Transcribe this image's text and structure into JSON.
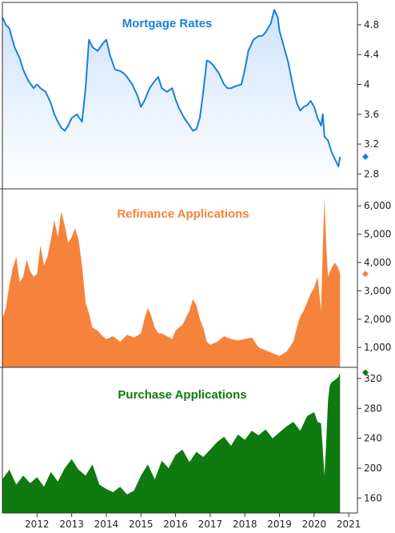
{
  "chart_data": [
    {
      "type": "line",
      "title": "Mortgage Rates",
      "color": "#1a7fd9",
      "area_gradient_top": "#cfe3fb",
      "ylim": [
        2.6,
        5.1
      ],
      "yticks": [
        2.8,
        3.2,
        3.6,
        4,
        4.4,
        4.8
      ],
      "ytick_labels": [
        "2.8",
        "3.2",
        "3.6",
        "4",
        "4.4",
        "4.8"
      ],
      "last_value": 3.03,
      "x": [
        2011.0,
        2011.1,
        2011.2,
        2011.35,
        2011.5,
        2011.6,
        2011.75,
        2011.9,
        2012.0,
        2012.1,
        2012.25,
        2012.4,
        2012.5,
        2012.6,
        2012.7,
        2012.8,
        2012.9,
        2013.0,
        2013.15,
        2013.3,
        2013.4,
        2013.5,
        2013.6,
        2013.75,
        2013.9,
        2014.0,
        2014.1,
        2014.25,
        2014.4,
        2014.5,
        2014.6,
        2014.75,
        2014.9,
        2015.0,
        2015.1,
        2015.25,
        2015.4,
        2015.5,
        2015.6,
        2015.75,
        2015.9,
        2016.0,
        2016.1,
        2016.25,
        2016.4,
        2016.5,
        2016.6,
        2016.7,
        2016.8,
        2016.9,
        2017.0,
        2017.1,
        2017.25,
        2017.4,
        2017.5,
        2017.6,
        2017.75,
        2017.9,
        2018.0,
        2018.1,
        2018.25,
        2018.4,
        2018.5,
        2018.6,
        2018.75,
        2018.85,
        2018.95,
        2019.0,
        2019.1,
        2019.25,
        2019.4,
        2019.5,
        2019.6,
        2019.7,
        2019.8,
        2019.9,
        2020.0,
        2020.1,
        2020.2,
        2020.25,
        2020.3,
        2020.4,
        2020.5,
        2020.6,
        2020.7,
        2020.75
      ],
      "values": [
        4.9,
        4.8,
        4.75,
        4.5,
        4.35,
        4.2,
        4.05,
        3.95,
        4.0,
        3.95,
        3.9,
        3.75,
        3.6,
        3.5,
        3.42,
        3.38,
        3.45,
        3.55,
        3.6,
        3.5,
        3.95,
        4.6,
        4.5,
        4.45,
        4.55,
        4.6,
        4.4,
        4.2,
        4.18,
        4.15,
        4.1,
        4.0,
        3.85,
        3.7,
        3.78,
        3.95,
        4.05,
        4.1,
        3.95,
        3.9,
        3.95,
        3.8,
        3.68,
        3.55,
        3.45,
        3.38,
        3.4,
        3.55,
        3.9,
        4.32,
        4.3,
        4.25,
        4.15,
        4.0,
        3.95,
        3.95,
        3.98,
        4.0,
        4.2,
        4.45,
        4.6,
        4.65,
        4.65,
        4.7,
        4.82,
        5.0,
        4.9,
        4.72,
        4.55,
        4.3,
        3.95,
        3.75,
        3.65,
        3.7,
        3.72,
        3.78,
        3.7,
        3.55,
        3.45,
        3.6,
        3.3,
        3.25,
        3.1,
        3.0,
        2.9,
        3.03
      ]
    },
    {
      "type": "area",
      "title": "Refinance Applications",
      "color": "#f5833c",
      "ylim": [
        300,
        6600
      ],
      "yticks": [
        1000,
        2000,
        3000,
        4000,
        5000,
        6000
      ],
      "ytick_labels": [
        "1,000",
        "2,000",
        "3,000",
        "4,000",
        "5,000",
        "6,000"
      ],
      "last_value": 3600,
      "x": [
        2011.0,
        2011.1,
        2011.2,
        2011.3,
        2011.4,
        2011.5,
        2011.6,
        2011.7,
        2011.8,
        2011.9,
        2012.0,
        2012.1,
        2012.2,
        2012.3,
        2012.4,
        2012.5,
        2012.6,
        2012.7,
        2012.8,
        2012.9,
        2013.0,
        2013.1,
        2013.2,
        2013.3,
        2013.4,
        2013.5,
        2013.6,
        2013.75,
        2013.9,
        2014.0,
        2014.2,
        2014.4,
        2014.6,
        2014.8,
        2015.0,
        2015.1,
        2015.2,
        2015.3,
        2015.4,
        2015.5,
        2015.6,
        2015.75,
        2015.9,
        2016.0,
        2016.2,
        2016.4,
        2016.5,
        2016.6,
        2016.7,
        2016.8,
        2016.9,
        2017.0,
        2017.2,
        2017.4,
        2017.6,
        2017.8,
        2018.0,
        2018.2,
        2018.4,
        2018.6,
        2018.8,
        2019.0,
        2019.2,
        2019.4,
        2019.5,
        2019.6,
        2019.7,
        2019.8,
        2019.9,
        2020.0,
        2020.1,
        2020.2,
        2020.25,
        2020.3,
        2020.35,
        2020.4,
        2020.5,
        2020.6,
        2020.7,
        2020.75
      ],
      "values": [
        2000,
        2400,
        3200,
        3800,
        4200,
        3300,
        3500,
        4100,
        3700,
        3500,
        3600,
        4600,
        3900,
        4200,
        4800,
        5500,
        4900,
        5800,
        5300,
        4700,
        4900,
        5200,
        4800,
        3900,
        2600,
        2200,
        1700,
        1600,
        1400,
        1300,
        1400,
        1200,
        1450,
        1350,
        1500,
        2000,
        2400,
        2100,
        1700,
        1500,
        1500,
        1400,
        1300,
        1600,
        1800,
        2300,
        2700,
        2500,
        2000,
        1700,
        1200,
        1100,
        1200,
        1400,
        1300,
        1250,
        1300,
        1350,
        1000,
        900,
        800,
        700,
        850,
        1200,
        1700,
        2100,
        2300,
        2600,
        2900,
        3100,
        3500,
        2300,
        4500,
        6300,
        4600,
        3500,
        3800,
        4000,
        3800,
        3600
      ]
    },
    {
      "type": "area",
      "title": "Purchase Applications",
      "color": "#0f7a0f",
      "ylim": [
        140,
        335
      ],
      "yticks": [
        160,
        200,
        240,
        280,
        320
      ],
      "ytick_labels": [
        "160",
        "200",
        "240",
        "280",
        "320"
      ],
      "last_value": 328,
      "x": [
        2011.0,
        2011.2,
        2011.4,
        2011.6,
        2011.8,
        2012.0,
        2012.2,
        2012.4,
        2012.6,
        2012.8,
        2013.0,
        2013.2,
        2013.4,
        2013.6,
        2013.8,
        2014.0,
        2014.2,
        2014.4,
        2014.6,
        2014.8,
        2015.0,
        2015.2,
        2015.4,
        2015.6,
        2015.8,
        2016.0,
        2016.2,
        2016.4,
        2016.6,
        2016.8,
        2017.0,
        2017.2,
        2017.4,
        2017.6,
        2017.8,
        2018.0,
        2018.2,
        2018.4,
        2018.6,
        2018.8,
        2019.0,
        2019.2,
        2019.4,
        2019.6,
        2019.8,
        2020.0,
        2020.1,
        2020.2,
        2020.25,
        2020.3,
        2020.35,
        2020.4,
        2020.45,
        2020.5,
        2020.6,
        2020.7,
        2020.75
      ],
      "values": [
        185,
        198,
        178,
        190,
        180,
        188,
        175,
        195,
        182,
        200,
        212,
        198,
        190,
        205,
        178,
        172,
        168,
        175,
        165,
        170,
        190,
        205,
        185,
        210,
        200,
        218,
        225,
        208,
        222,
        215,
        225,
        235,
        242,
        230,
        245,
        238,
        250,
        244,
        252,
        240,
        248,
        256,
        262,
        250,
        270,
        275,
        262,
        260,
        225,
        190,
        235,
        290,
        310,
        315,
        318,
        322,
        328
      ]
    }
  ],
  "x_axis": {
    "range": [
      2011.0,
      2021.25
    ],
    "ticks": [
      2012,
      2013,
      2014,
      2015,
      2016,
      2017,
      2018,
      2019,
      2020,
      2021
    ],
    "tick_labels": [
      "2012",
      "2013",
      "2014",
      "2015",
      "2016",
      "2017",
      "2018",
      "2019",
      "2020",
      "2021"
    ]
  },
  "grid": false,
  "background": "#ffffff",
  "axis_color": "#333333"
}
